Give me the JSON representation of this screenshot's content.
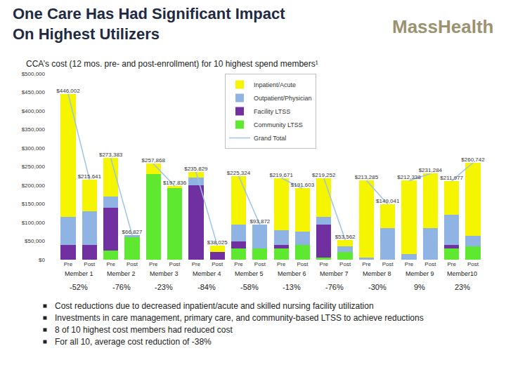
{
  "logo": "MassHealth",
  "bullets": [
    "Cost reductions due to decreased inpatient/acute and skilled nursing facility utilization",
    "Investments in care management, primary care, and community-based LTSS to achieve reductions",
    "8 of 10 highest cost members had reduced cost",
    "For all 10, average cost reduction of -38%"
  ],
  "chart_data": {
    "type": "bar",
    "stacked": true,
    "title": [
      "One Care Has Had Significant Impact",
      "On Highest Utilizers"
    ],
    "subtitle": "CCA’s cost (12 mos. pre- and post-enrollment) for 10 highest spend members¹",
    "categories": [
      "Pre",
      "Post",
      "Pre",
      "Post",
      "Pre",
      "Post",
      "Pre",
      "Post",
      "Pre",
      "Post",
      "Pre",
      "Post",
      "Pre",
      "Post",
      "Pre",
      "Post",
      "Pre",
      "Post",
      "Pre",
      "Post"
    ],
    "groups": [
      "Member 1",
      "Member 2",
      "Member 3",
      "Member 4",
      "Member 5",
      "Member 6",
      "Member 7",
      "Member 8",
      "Member 9",
      "Member10"
    ],
    "group_changes": [
      "-52%",
      "-76%",
      "-23%",
      "-84%",
      "-58%",
      "-13%",
      "-76%",
      "-30%",
      "9%",
      "23%"
    ],
    "ylim": [
      0,
      500000
    ],
    "yticks": [
      {
        "value": 0,
        "label": "$0"
      },
      {
        "value": 50000,
        "label": "$50,000"
      },
      {
        "value": 100000,
        "label": "$100,000"
      },
      {
        "value": 150000,
        "label": "$150,000"
      },
      {
        "value": 200000,
        "label": "$200,000"
      },
      {
        "value": 250000,
        "label": "$250,000"
      },
      {
        "value": 300000,
        "label": "$300,000"
      },
      {
        "value": 350000,
        "label": "$350,000"
      },
      {
        "value": 400000,
        "label": "$400,000"
      },
      {
        "value": 450000,
        "label": "$450,000"
      },
      {
        "value": 500000,
        "label": "$500,000"
      }
    ],
    "grid": false,
    "legend": "top",
    "series": [
      {
        "name": "Inpatient/Acute",
        "type": "bar",
        "color": "#f5f500",
        "values": [
          331002,
          85641,
          103383,
          0,
          27868,
          5836,
          15829,
          18025,
          130324,
          0,
          139671,
          116603,
          104252,
          18562,
          208285,
          64041,
          197338,
          146284,
          91977,
          195742
        ]
      },
      {
        "name": "Outpatient/Physician",
        "type": "bar",
        "color": "#8fb4e3",
        "values": [
          75000,
          90000,
          30000,
          6827,
          0,
          0,
          20000,
          0,
          45000,
          63872,
          40000,
          35000,
          20000,
          15000,
          5000,
          85000,
          15000,
          85000,
          80000,
          30000
        ]
      },
      {
        "name": "Facility LTSS",
        "type": "bar",
        "color": "#7030a0",
        "values": [
          40000,
          40000,
          115000,
          0,
          0,
          0,
          200000,
          20000,
          20000,
          0,
          10000,
          0,
          90000,
          0,
          0,
          0,
          0,
          0,
          10000,
          0
        ]
      },
      {
        "name": "Community LTSS",
        "type": "bar",
        "color": "#5ee830",
        "values": [
          0,
          0,
          25000,
          60000,
          230000,
          192000,
          0,
          0,
          30000,
          30000,
          30000,
          40000,
          5000,
          20000,
          0,
          0,
          0,
          0,
          30000,
          35000
        ]
      },
      {
        "name": "Grand Total",
        "type": "line",
        "color": "#9dc3e6",
        "data_labels": true,
        "values": [
          446002,
          215641,
          273383,
          66827,
          257868,
          197836,
          235829,
          38025,
          225324,
          93872,
          219671,
          191603,
          219252,
          53562,
          213285,
          149041,
          212338,
          231284,
          211977,
          260742
        ],
        "value_labels": [
          "$446,002",
          "$215,641",
          "$273,383",
          "$66,827",
          "$257,868",
          "$197,836",
          "$235,829",
          "$38,025",
          "$225,324",
          "$93,872",
          "$219,671",
          "$191,603",
          "$219,252",
          "$53,562",
          "$213,285",
          "$149,041",
          "$212,338",
          "$231,284",
          "$211,977",
          "$260,742"
        ]
      }
    ]
  }
}
